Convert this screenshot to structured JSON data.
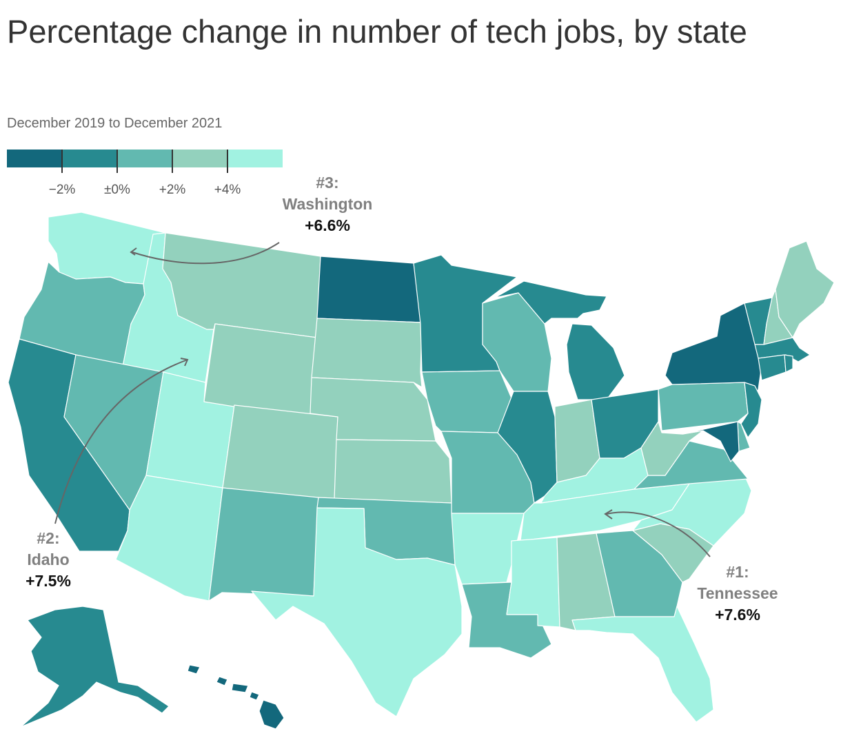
{
  "title": "Percentage change in number of tech jobs, by state",
  "subtitle": "December 2019 to December 2021",
  "legend": {
    "colors": [
      "#13687c",
      "#278a90",
      "#62b9b0",
      "#93d1bd",
      "#a1f2e1"
    ],
    "ticks": [
      "−2%",
      "±0%",
      "+2%",
      "+4%"
    ]
  },
  "callouts": [
    {
      "rank": "#3:",
      "state": "Washington",
      "value": "+6.6%"
    },
    {
      "rank": "#2:",
      "state": "Idaho",
      "value": "+7.5%"
    },
    {
      "rank": "#1:",
      "state": "Tennessee",
      "value": "+7.6%"
    }
  ],
  "map_data": {
    "WA": 4,
    "OR": 2,
    "CA": 1,
    "ID": 4,
    "NV": 2,
    "UT": 4,
    "AZ": 4,
    "MT": 3,
    "WY": 3,
    "CO": 3,
    "NM": 2,
    "ND": 0,
    "SD": 3,
    "NE": 3,
    "KS": 3,
    "OK": 2,
    "TX": 4,
    "MN": 1,
    "IA": 2,
    "MO": 2,
    "AR": 4,
    "LA": 2,
    "WI": 2,
    "IL": 1,
    "MI": 1,
    "IN": 3,
    "OH": 1,
    "KY": 4,
    "TN": 4,
    "MS": 4,
    "AL": 3,
    "GA": 2,
    "FL": 4,
    "SC": 3,
    "NC": 4,
    "VA": 2,
    "WV": 3,
    "PA": 2,
    "NY": 0,
    "VT": 1,
    "NH": 3,
    "ME": 3,
    "MA": 1,
    "CT": 1,
    "RI": 1,
    "NJ": 1,
    "DE": 2,
    "MD": 0,
    "AK": 1,
    "HI": 0
  }
}
